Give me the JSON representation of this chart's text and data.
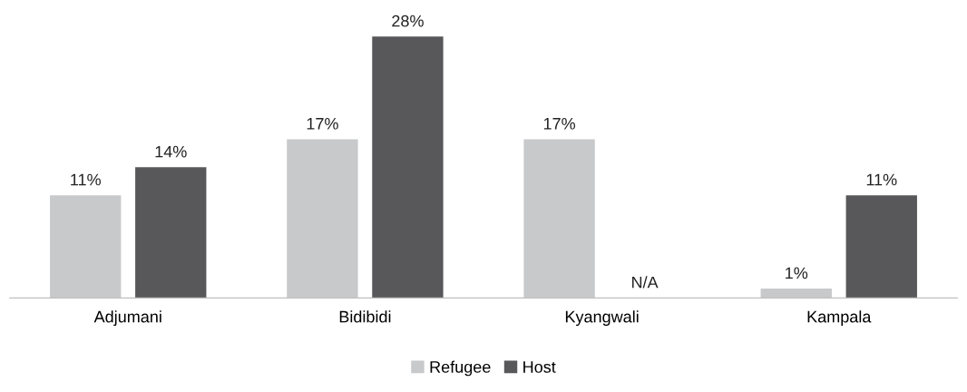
{
  "chart_data": {
    "type": "bar",
    "categories": [
      "Adjumani",
      "Bidibidi",
      "Kyangwali",
      "Kampala"
    ],
    "series": [
      {
        "name": "Refugee",
        "color": "#c8c9cb",
        "values": [
          11,
          17,
          17,
          1
        ],
        "value_labels": [
          "11%",
          "17%",
          "17%",
          "1%"
        ]
      },
      {
        "name": "Host",
        "color": "#58585a",
        "values": [
          14,
          28,
          null,
          11
        ],
        "value_labels": [
          "14%",
          "28%",
          "N/A",
          "11%"
        ]
      }
    ],
    "legend": "bottom",
    "grid": false
  }
}
